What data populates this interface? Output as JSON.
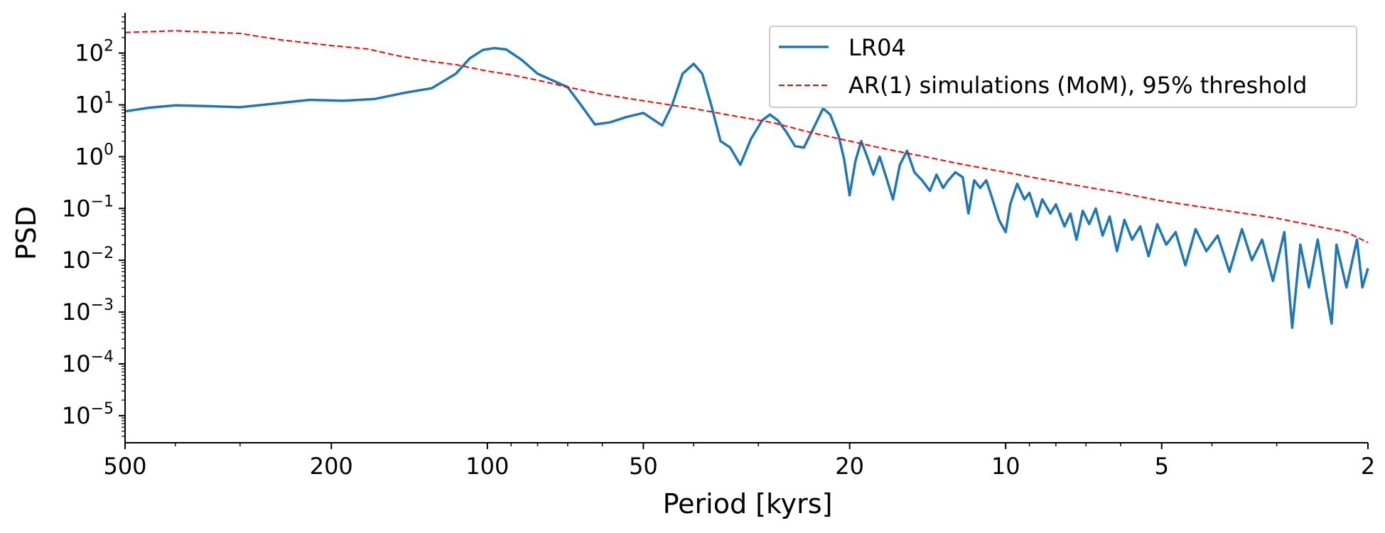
{
  "chart_data": {
    "type": "line",
    "title": "",
    "xlabel": "Period [kyrs]",
    "ylabel": "PSD",
    "x_scale": "log",
    "y_scale": "log",
    "x_reversed": true,
    "xlim": [
      500,
      2
    ],
    "ylim": [
      3e-06,
      600
    ],
    "x_ticks": [
      500,
      200,
      100,
      50,
      20,
      10,
      5,
      2
    ],
    "x_tick_labels": [
      "500",
      "200",
      "100",
      "50",
      "20",
      "10",
      "5",
      "2"
    ],
    "y_ticks": [
      100,
      10,
      1,
      0.1,
      0.01,
      0.001,
      0.0001,
      1e-05
    ],
    "y_tick_labels": [
      {
        "base": "10",
        "exp": "2"
      },
      {
        "base": "10",
        "exp": "1"
      },
      {
        "base": "10",
        "exp": "0"
      },
      {
        "base": "10",
        "exp": "−1"
      },
      {
        "base": "10",
        "exp": "−2"
      },
      {
        "base": "10",
        "exp": "−3"
      },
      {
        "base": "10",
        "exp": "−4"
      },
      {
        "base": "10",
        "exp": "−5"
      }
    ],
    "grid": false,
    "legend_position": "top-right",
    "series": [
      {
        "name": "LR04",
        "color": "#1f77b4",
        "style": "solid",
        "points": [
          [
            500,
            7.5
          ],
          [
            450,
            8.8
          ],
          [
            400,
            9.8
          ],
          [
            350,
            9.5
          ],
          [
            300,
            9.0
          ],
          [
            260,
            10.5
          ],
          [
            220,
            12.5
          ],
          [
            190,
            12.0
          ],
          [
            165,
            13.0
          ],
          [
            145,
            17.0
          ],
          [
            128,
            21.0
          ],
          [
            115,
            40.0
          ],
          [
            108,
            80.0
          ],
          [
            102,
            115.0
          ],
          [
            97,
            125.0
          ],
          [
            92,
            118.0
          ],
          [
            86,
            75.0
          ],
          [
            80,
            40.0
          ],
          [
            75,
            30.0
          ],
          [
            70,
            22.0
          ],
          [
            66,
            10.0
          ],
          [
            62,
            4.2
          ],
          [
            58,
            4.6
          ],
          [
            54,
            5.8
          ],
          [
            50,
            7.0
          ],
          [
            46,
            4.0
          ],
          [
            44,
            10.0
          ],
          [
            42,
            40.0
          ],
          [
            40,
            62.0
          ],
          [
            38.5,
            40.0
          ],
          [
            37,
            10.0
          ],
          [
            35.5,
            2.0
          ],
          [
            34,
            1.5
          ],
          [
            32.5,
            0.7
          ],
          [
            31,
            2.2
          ],
          [
            29.5,
            5.0
          ],
          [
            28.5,
            6.5
          ],
          [
            27.5,
            5.0
          ],
          [
            26.5,
            3.0
          ],
          [
            25.5,
            1.6
          ],
          [
            24.5,
            1.5
          ],
          [
            23.5,
            3.5
          ],
          [
            22.5,
            8.5
          ],
          [
            21.8,
            6.5
          ],
          [
            21,
            2.5
          ],
          [
            20.5,
            0.9
          ],
          [
            20,
            0.18
          ],
          [
            19.5,
            0.8
          ],
          [
            19,
            2.0
          ],
          [
            18.5,
            1.0
          ],
          [
            18,
            0.45
          ],
          [
            17.5,
            1.0
          ],
          [
            17,
            0.4
          ],
          [
            16.5,
            0.15
          ],
          [
            16,
            0.7
          ],
          [
            15.5,
            1.3
          ],
          [
            15,
            0.5
          ],
          [
            14.5,
            0.35
          ],
          [
            14,
            0.22
          ],
          [
            13.6,
            0.45
          ],
          [
            13.2,
            0.25
          ],
          [
            12.9,
            0.35
          ],
          [
            12.5,
            0.5
          ],
          [
            12.1,
            0.4
          ],
          [
            11.8,
            0.08
          ],
          [
            11.5,
            0.35
          ],
          [
            11.2,
            0.25
          ],
          [
            10.9,
            0.35
          ],
          [
            10.6,
            0.15
          ],
          [
            10.3,
            0.06
          ],
          [
            10,
            0.035
          ],
          [
            9.8,
            0.12
          ],
          [
            9.5,
            0.3
          ],
          [
            9.2,
            0.15
          ],
          [
            9,
            0.2
          ],
          [
            8.7,
            0.07
          ],
          [
            8.5,
            0.15
          ],
          [
            8.2,
            0.08
          ],
          [
            8,
            0.12
          ],
          [
            7.7,
            0.045
          ],
          [
            7.5,
            0.08
          ],
          [
            7.3,
            0.025
          ],
          [
            7.1,
            0.09
          ],
          [
            6.9,
            0.05
          ],
          [
            6.7,
            0.1
          ],
          [
            6.5,
            0.03
          ],
          [
            6.3,
            0.07
          ],
          [
            6.1,
            0.015
          ],
          [
            5.9,
            0.06
          ],
          [
            5.7,
            0.025
          ],
          [
            5.5,
            0.045
          ],
          [
            5.3,
            0.012
          ],
          [
            5.1,
            0.05
          ],
          [
            4.9,
            0.02
          ],
          [
            4.7,
            0.035
          ],
          [
            4.5,
            0.008
          ],
          [
            4.3,
            0.04
          ],
          [
            4.1,
            0.015
          ],
          [
            3.9,
            0.03
          ],
          [
            3.7,
            0.006
          ],
          [
            3.5,
            0.04
          ],
          [
            3.35,
            0.01
          ],
          [
            3.2,
            0.025
          ],
          [
            3.05,
            0.004
          ],
          [
            2.9,
            0.035
          ],
          [
            2.8,
            0.0005
          ],
          [
            2.7,
            0.02
          ],
          [
            2.6,
            0.003
          ],
          [
            2.5,
            0.025
          ],
          [
            2.4,
            0.002
          ],
          [
            2.35,
            0.0006
          ],
          [
            2.3,
            0.02
          ],
          [
            2.2,
            0.003
          ],
          [
            2.1,
            0.025
          ],
          [
            2.05,
            0.003
          ],
          [
            2,
            0.007
          ]
        ]
      },
      {
        "name": "AR(1) simulations (MoM), 95% threshold",
        "color": "#ff0000",
        "style": "dashed",
        "points": [
          [
            500,
            250
          ],
          [
            400,
            270
          ],
          [
            300,
            240
          ],
          [
            250,
            180
          ],
          [
            200,
            140
          ],
          [
            170,
            120
          ],
          [
            150,
            90
          ],
          [
            130,
            70
          ],
          [
            115,
            60
          ],
          [
            100,
            45
          ],
          [
            90,
            38
          ],
          [
            80,
            30
          ],
          [
            70,
            22
          ],
          [
            60,
            16
          ],
          [
            50,
            12
          ],
          [
            40,
            8.5
          ],
          [
            33,
            6.0
          ],
          [
            28,
            4.5
          ],
          [
            24,
            3.0
          ],
          [
            20,
            2.0
          ],
          [
            17,
            1.4
          ],
          [
            15,
            1.1
          ],
          [
            12,
            0.7
          ],
          [
            10,
            0.5
          ],
          [
            8,
            0.33
          ],
          [
            7,
            0.26
          ],
          [
            6,
            0.2
          ],
          [
            5,
            0.14
          ],
          [
            4,
            0.1
          ],
          [
            3,
            0.065
          ],
          [
            2.5,
            0.045
          ],
          [
            2.2,
            0.035
          ],
          [
            2,
            0.022
          ]
        ]
      }
    ]
  }
}
